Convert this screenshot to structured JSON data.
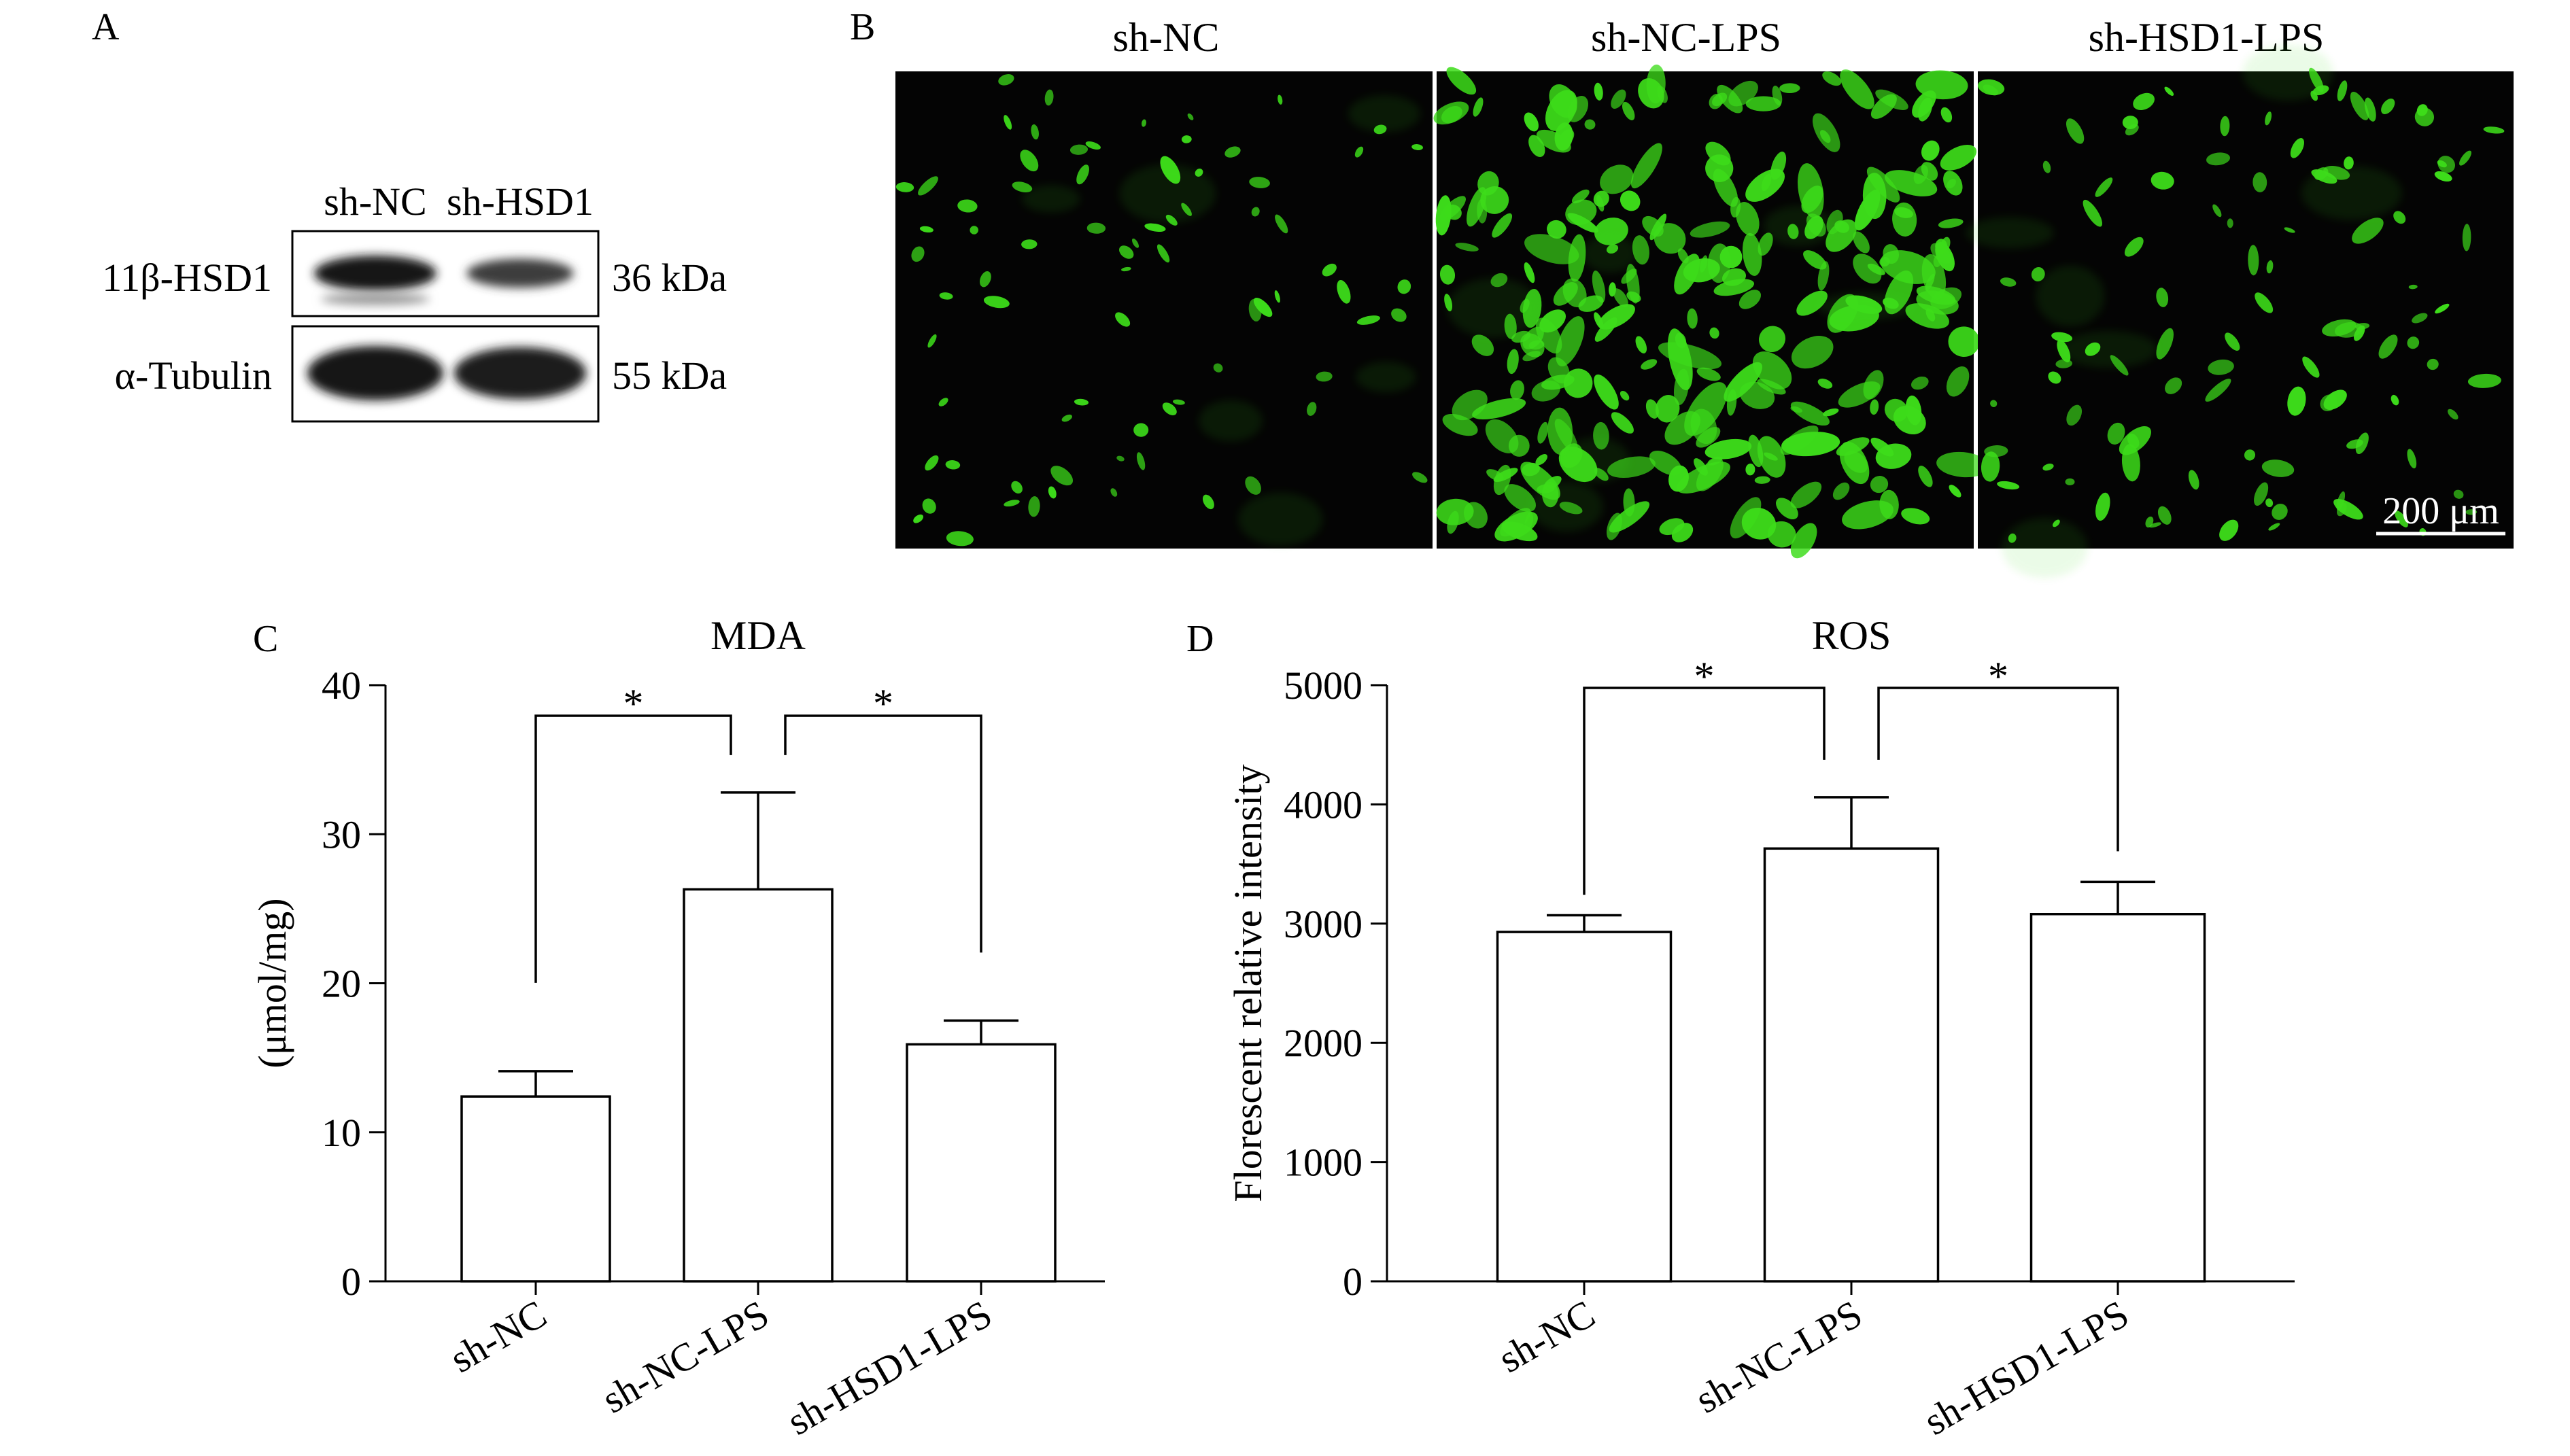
{
  "panels": {
    "a": {
      "label": "A",
      "lanes": [
        "sh-NC",
        "sh-HSD1"
      ],
      "rows": [
        {
          "protein": "11β-HSD1",
          "size": "36 kDa",
          "intensity": [
            1.0,
            0.55
          ]
        },
        {
          "protein": "α-Tubulin",
          "size": "55 kDa",
          "intensity": [
            1.0,
            0.9
          ]
        }
      ]
    },
    "b": {
      "label": "B",
      "images": [
        "sh-NC",
        "sh-NC-LPS",
        "sh-HSD1-LPS"
      ],
      "fluorescence_color": "#3ddc1a",
      "scale_bar": "200 μm"
    }
  },
  "chart_data": [
    {
      "type": "bar",
      "panel": "C",
      "title": "MDA",
      "xlabel": "",
      "ylabel": "(μmol/mg)",
      "categories": [
        "sh-NC",
        "sh-NC-LPS",
        "sh-HSD1-LPS"
      ],
      "values": [
        12.4,
        26.3,
        15.9
      ],
      "errors": [
        1.7,
        6.5,
        1.6
      ],
      "ylim": [
        0,
        40
      ],
      "yticks": [
        0,
        10,
        20,
        30,
        40
      ],
      "significance": [
        {
          "from": 0,
          "to": 1,
          "label": "*"
        },
        {
          "from": 1,
          "to": 2,
          "label": "*"
        }
      ],
      "grid": false
    },
    {
      "type": "bar",
      "panel": "D",
      "title": "ROS",
      "xlabel": "",
      "ylabel": "Florescent relative intensity",
      "categories": [
        "sh-NC",
        "sh-NC-LPS",
        "sh-HSD1-LPS"
      ],
      "values": [
        2930,
        3630,
        3080
      ],
      "errors": [
        140,
        430,
        270
      ],
      "ylim": [
        0,
        5000
      ],
      "yticks": [
        0,
        1000,
        2000,
        3000,
        4000,
        5000
      ],
      "significance": [
        {
          "from": 0,
          "to": 1,
          "label": "*"
        },
        {
          "from": 1,
          "to": 2,
          "label": "*"
        }
      ],
      "grid": false
    }
  ]
}
